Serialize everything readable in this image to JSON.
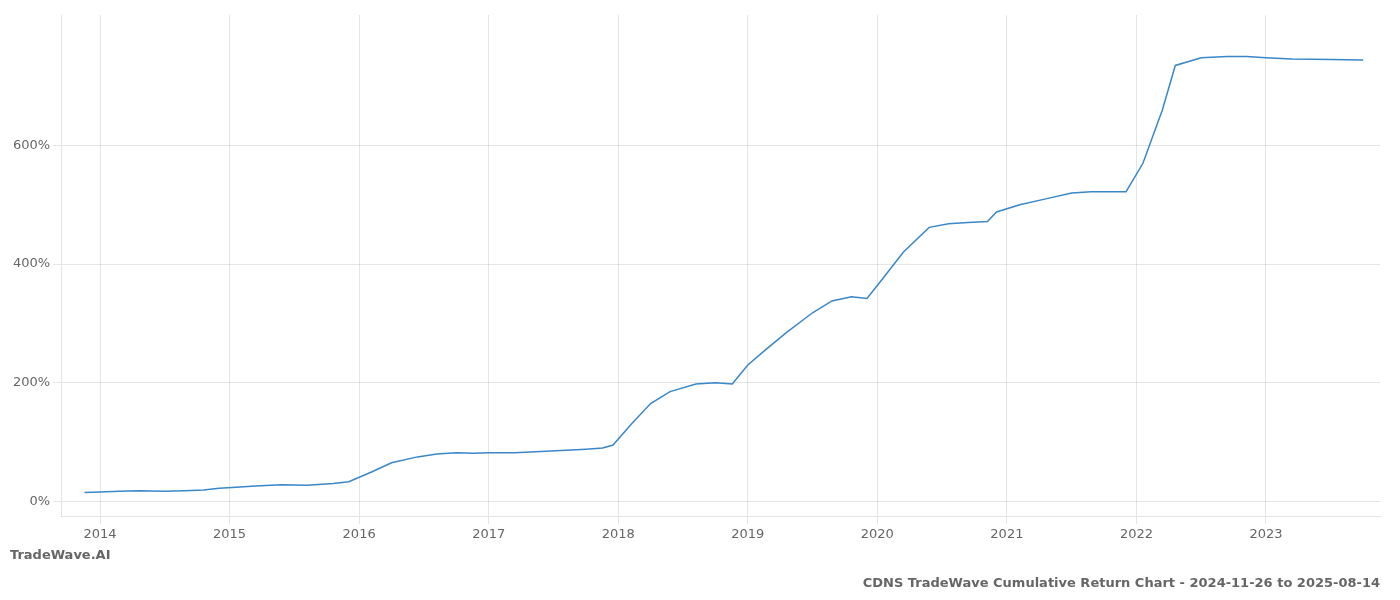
{
  "chart_data": {
    "type": "line",
    "title": "CDNS TradeWave Cumulative Return Chart - 2024-11-26 to 2025-08-14",
    "annotations": [
      "TradeWave.AI"
    ],
    "color": "#3a87c8",
    "grid": true,
    "x": [
      2013.88,
      2014.0,
      2014.15,
      2014.3,
      2014.5,
      2014.65,
      2014.8,
      2014.92,
      2015.05,
      2015.2,
      2015.4,
      2015.6,
      2015.8,
      2015.92,
      2016.1,
      2016.25,
      2016.45,
      2016.6,
      2016.75,
      2016.88,
      2017.0,
      2017.2,
      2017.4,
      2017.6,
      2017.75,
      2017.88,
      2017.96,
      2018.1,
      2018.25,
      2018.4,
      2018.6,
      2018.75,
      2018.88,
      2019.0,
      2019.15,
      2019.3,
      2019.5,
      2019.65,
      2019.8,
      2019.92,
      2020.05,
      2020.2,
      2020.4,
      2020.55,
      2020.7,
      2020.85,
      2020.92,
      2021.1,
      2021.3,
      2021.5,
      2021.65,
      2021.8,
      2021.92,
      2022.05,
      2022.2,
      2022.3,
      2022.5,
      2022.7,
      2022.85,
      2023.0,
      2023.2,
      2023.5,
      2023.75
    ],
    "values": [
      15,
      16,
      17,
      18,
      17,
      18,
      19,
      22,
      24,
      26,
      28,
      27,
      30,
      33,
      50,
      65,
      75,
      80,
      82,
      81,
      82,
      82,
      84,
      86,
      88,
      90,
      95,
      130,
      165,
      185,
      198,
      200,
      198,
      230,
      258,
      285,
      318,
      338,
      345,
      342,
      378,
      420,
      462,
      468,
      470,
      472,
      488,
      500,
      510,
      520,
      522,
      522,
      522,
      570,
      660,
      735,
      748,
      750,
      750,
      748,
      746,
      745,
      744
    ],
    "xlim": [
      2013.7,
      2023.88
    ],
    "xticks": [
      2014,
      2015,
      2016,
      2017,
      2018,
      2019,
      2020,
      2021,
      2022,
      2023
    ],
    "ylim": [
      -25,
      820
    ],
    "yticks": [
      {
        "value": 0,
        "label": "0%"
      },
      {
        "value": 200,
        "label": "200%"
      },
      {
        "value": 400,
        "label": "400%"
      },
      {
        "value": 600,
        "label": "600%"
      }
    ]
  }
}
